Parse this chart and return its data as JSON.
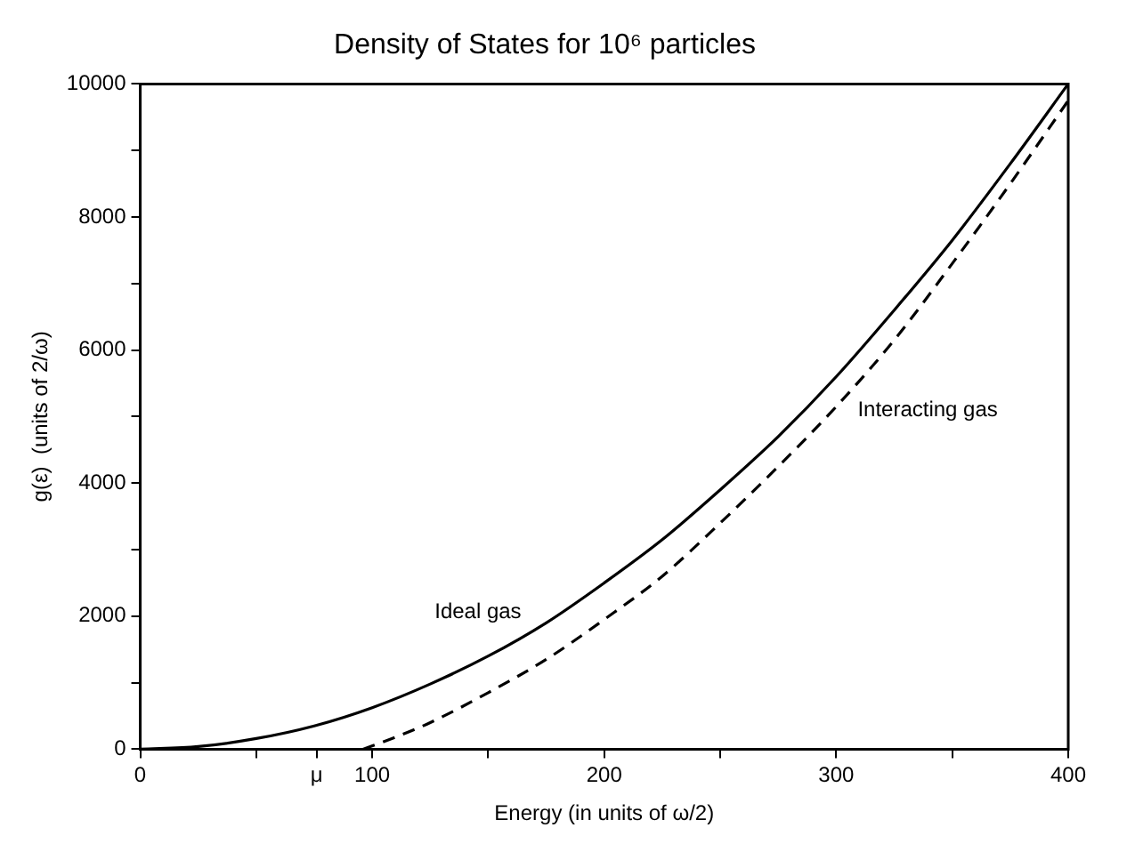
{
  "chart_data": {
    "type": "line",
    "title": "Density of States for 10⁶ particles",
    "xlabel": "Energy (in units of ω/2)",
    "ylabel": "g(ε)  (units of 2/ω)",
    "xlim": [
      0,
      400
    ],
    "ylim": [
      0,
      10000
    ],
    "xticks": [
      0,
      {
        "value": 50,
        "label": null
      },
      {
        "value": 76,
        "label": "μ"
      },
      100,
      {
        "value": 150,
        "label": null
      },
      200,
      {
        "value": 250,
        "label": null
      },
      300,
      {
        "value": 350,
        "label": null
      },
      400
    ],
    "yticks": [
      0,
      {
        "value": 1000,
        "label": null
      },
      2000,
      {
        "value": 3000,
        "label": null
      },
      4000,
      {
        "value": 5000,
        "label": null
      },
      6000,
      {
        "value": 7000,
        "label": null
      },
      8000,
      {
        "value": 9000,
        "label": null
      },
      10000
    ],
    "grid": false,
    "legend": false,
    "marker": "none",
    "series": [
      {
        "name": "Ideal gas",
        "color": "#000000",
        "line_style": "solid",
        "x": [
          0,
          25,
          50,
          75,
          100,
          125,
          150,
          175,
          200,
          225,
          250,
          275,
          300,
          325,
          350,
          375,
          400
        ],
        "values": [
          0,
          40,
          160,
          350,
          625,
          980,
          1400,
          1900,
          2500,
          3150,
          3900,
          4700,
          5600,
          6600,
          7650,
          8800,
          10000
        ]
      },
      {
        "name": "Interacting gas",
        "color": "#000000",
        "line_style": "dashed",
        "x": [
          96,
          110,
          125,
          150,
          175,
          200,
          225,
          250,
          275,
          300,
          325,
          350,
          375,
          400
        ],
        "values": [
          0,
          180,
          400,
          850,
          1350,
          1950,
          2600,
          3400,
          4250,
          5150,
          6150,
          7300,
          8500,
          9750
        ]
      }
    ]
  }
}
